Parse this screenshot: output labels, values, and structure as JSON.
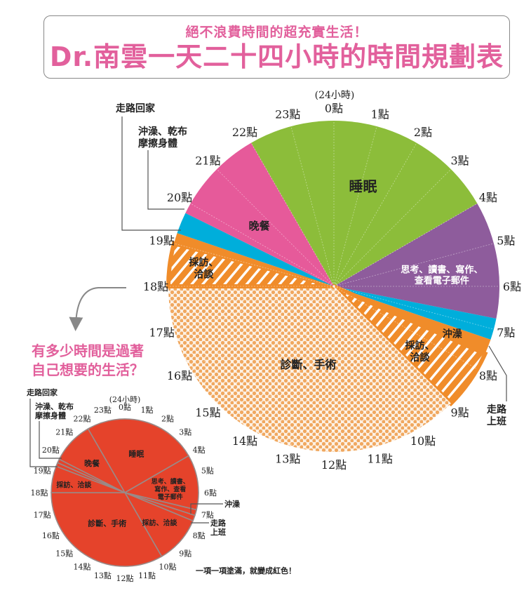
{
  "header": {
    "subtitle": "絕不浪費時間的超充實生活！",
    "title": "Dr.南雲一天二十四小時的時間規劃表"
  },
  "question": [
    "有多少時間是過著",
    "自己想要的生活？"
  ],
  "footnote": "一項一項塗滿，就變成紅色！",
  "chart_data": [
    {
      "type": "pie",
      "title": "",
      "clock_label": "(24小時)",
      "tick_labels": [
        "0點",
        "1點",
        "2點",
        "3點",
        "4點",
        "5點",
        "6點",
        "7點",
        "8點",
        "9點",
        "10點",
        "11點",
        "12點",
        "13點",
        "14點",
        "15點",
        "16點",
        "17點",
        "18點",
        "19點",
        "20點",
        "21點",
        "22點",
        "23點"
      ],
      "unit": "hours",
      "segments": [
        {
          "label": "睡眠",
          "start": 22,
          "end": 28,
          "hours": 6,
          "color": "#8cbd3a",
          "fill": "solid"
        },
        {
          "label": "思考、讀書、寫作、查看電子郵件",
          "lines": [
            "思考、讀書、寫作、",
            "查看電子郵件"
          ],
          "start": 4,
          "end": 6.75,
          "hours": 2.75,
          "color": "#8e5c9c",
          "fill": "solid"
        },
        {
          "label": "沖澡",
          "start": 6.75,
          "end": 7.25,
          "hours": 0.5,
          "color": "#00aedb",
          "fill": "solid"
        },
        {
          "label": "走路上班",
          "lines": [
            "走路",
            "上班"
          ],
          "start": 7.25,
          "end": 7.6,
          "hours": 0.35,
          "color": "#f08c2a",
          "fill": "solid"
        },
        {
          "label": "採訪、洽談",
          "lines": [
            "採訪、",
            "洽談"
          ],
          "start": 7.6,
          "end": 9,
          "hours": 1.4,
          "color": "#f08c2a",
          "fill": "stripes"
        },
        {
          "label": "診斷、手術",
          "start": 9,
          "end": 18,
          "hours": 9,
          "color": "#f0a860",
          "fill": "dots"
        },
        {
          "label": "採訪、洽談",
          "lines": [
            "採訪、",
            "洽談"
          ],
          "start": 18,
          "end": 19,
          "hours": 1,
          "color": "#f08c2a",
          "fill": "stripes"
        },
        {
          "label": "走路回家",
          "start": 19,
          "end": 19.25,
          "hours": 0.25,
          "color": "#f08c2a",
          "fill": "solid"
        },
        {
          "label": "沖澡、乾布摩擦身體",
          "lines": [
            "沖澡、乾布",
            "摩擦身體"
          ],
          "start": 19.25,
          "end": 19.75,
          "hours": 0.5,
          "color": "#00aedb",
          "fill": "solid"
        },
        {
          "label": "晚餐",
          "start": 19.75,
          "end": 22,
          "hours": 2.25,
          "color": "#e65a9a",
          "fill": "solid"
        }
      ]
    },
    {
      "type": "pie",
      "title": "",
      "clock_label": "(24小時)",
      "tick_labels": [
        "0點",
        "1點",
        "2點",
        "3點",
        "4點",
        "5點",
        "6點",
        "7點",
        "8點",
        "9點",
        "10點",
        "11點",
        "12點",
        "13點",
        "14點",
        "15點",
        "16點",
        "17點",
        "18點",
        "19點",
        "20點",
        "21點",
        "22點",
        "23點"
      ],
      "color": "#e5432b",
      "segments": [
        {
          "label": "睡眠",
          "start": 22,
          "end": 28
        },
        {
          "label": "思考、讀書、寫作、查看電子郵件",
          "lines": [
            "思考、讀書、",
            "寫作、查看",
            "電子郵件"
          ],
          "start": 4,
          "end": 6.9
        },
        {
          "label": "沖澡",
          "start": 6.9,
          "end": 7.2
        },
        {
          "label": "走路上班",
          "lines": [
            "走路",
            "上班"
          ],
          "start": 7.2,
          "end": 7.5
        },
        {
          "label": "採訪、洽談",
          "start": 7.5,
          "end": 10
        },
        {
          "label": "診斷、手術",
          "start": 10,
          "end": 18
        },
        {
          "label": "採訪、洽談",
          "start": 18,
          "end": 19.4
        },
        {
          "label": "走路回家",
          "start": 19.4,
          "end": 19.6
        },
        {
          "label": "沖澡、乾布摩擦身體",
          "lines": [
            "沖澡、乾布",
            "摩擦身體"
          ],
          "start": 19.6,
          "end": 19.8
        },
        {
          "label": "晚餐",
          "start": 19.8,
          "end": 22
        }
      ]
    }
  ]
}
